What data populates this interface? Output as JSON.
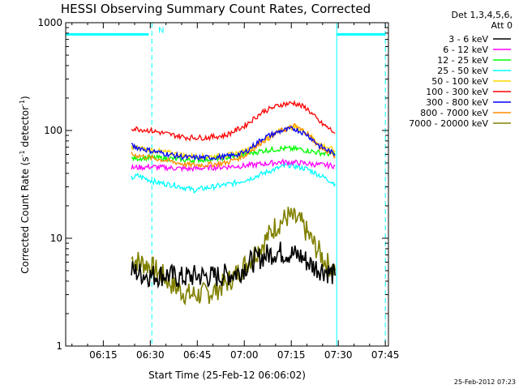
{
  "chart_data": {
    "type": "line",
    "title": "HESSI Observing Summary Count Rates, Corrected",
    "xlabel": "Start Time (25-Feb-12 06:06:02)",
    "ylabel_main": "Corrected Count Rate (s",
    "ylabel_sup1": "-1",
    "ylabel_mid": " detector",
    "ylabel_sup2": "-1",
    "ylabel_end": ")",
    "y_scale": "log",
    "ylim": [
      1,
      1000
    ],
    "xlim_min": [
      363,
      466
    ],
    "x_ticks": [
      "06:15",
      "06:30",
      "06:45",
      "07:00",
      "07:15",
      "07:30",
      "07:45"
    ],
    "x_tick_minutes": [
      375,
      390,
      405,
      420,
      435,
      450,
      465
    ],
    "y_ticks": [
      "1",
      "10",
      "100",
      "1000"
    ],
    "y_tick_values": [
      1,
      10,
      100,
      1000
    ],
    "legend_header": [
      "Det 1,3,4,5,6,",
      "Att 0"
    ],
    "legend_position": "right",
    "series": [
      {
        "name": "3 - 6 keV",
        "color": "#000000",
        "x": [
          384,
          386,
          390,
          395,
          400,
          405,
          410,
          415,
          418,
          422,
          426,
          430,
          434,
          438,
          442,
          446,
          449
        ],
        "y": [
          5,
          4.8,
          4.5,
          4.6,
          4.3,
          4.5,
          4.4,
          4.6,
          4.8,
          6,
          6.8,
          7.5,
          7.3,
          6.8,
          5.5,
          5,
          4.5
        ]
      },
      {
        "name": "6 - 12 keV",
        "color": "#ff00ff",
        "x": [
          384,
          390,
          396,
          402,
          408,
          414,
          420,
          426,
          432,
          438,
          444,
          449
        ],
        "y": [
          45,
          46,
          45,
          44,
          45,
          46,
          47,
          49,
          51,
          50,
          48,
          47
        ]
      },
      {
        "name": "12 - 25 keV",
        "color": "#00ff00",
        "x": [
          384,
          390,
          396,
          402,
          408,
          414,
          420,
          426,
          432,
          438,
          444,
          449
        ],
        "y": [
          55,
          56,
          55,
          53,
          54,
          56,
          60,
          65,
          68,
          67,
          62,
          60
        ]
      },
      {
        "name": "25 - 50 keV",
        "color": "#00ffff",
        "x": [
          384,
          386,
          392,
          398,
          404,
          410,
          416,
          422,
          428,
          434,
          440,
          446,
          449
        ],
        "y": [
          36,
          38,
          33,
          31,
          28,
          30,
          32,
          36,
          42,
          48,
          44,
          36,
          32
        ]
      },
      {
        "name": "50 - 100 keV",
        "color": "#ffd700",
        "x": [
          384,
          390,
          396,
          402,
          408,
          414,
          420,
          426,
          432,
          436,
          440,
          444,
          449
        ],
        "y": [
          70,
          66,
          62,
          58,
          57,
          58,
          64,
          80,
          102,
          108,
          95,
          75,
          65
        ]
      },
      {
        "name": "100 - 300 keV",
        "color": "#ff0000",
        "x": [
          384,
          390,
          396,
          402,
          408,
          414,
          420,
          426,
          432,
          436,
          440,
          444,
          449
        ],
        "y": [
          105,
          100,
          92,
          86,
          86,
          90,
          110,
          150,
          175,
          180,
          160,
          120,
          95
        ]
      },
      {
        "name": "300 - 800 keV",
        "color": "#0000ff",
        "x": [
          384,
          390,
          396,
          402,
          408,
          414,
          420,
          426,
          432,
          436,
          440,
          444,
          449
        ],
        "y": [
          72,
          65,
          60,
          56,
          56,
          57,
          62,
          85,
          100,
          104,
          92,
          72,
          60
        ]
      },
      {
        "name": "800 - 7000 keV",
        "color": "#ff8c00",
        "x": [
          384,
          390,
          396,
          402,
          408,
          414,
          420,
          426,
          432,
          436,
          440,
          444,
          449
        ],
        "y": [
          60,
          56,
          52,
          48,
          48,
          50,
          58,
          80,
          100,
          110,
          95,
          70,
          58
        ]
      },
      {
        "name": "7000 - 20000 keV",
        "color": "#808000",
        "x": [
          384,
          387,
          390,
          394,
          398,
          402,
          406,
          410,
          414,
          418,
          422,
          426,
          430,
          434,
          438,
          442,
          446,
          449
        ],
        "y": [
          6.5,
          6,
          5.5,
          4.5,
          3.5,
          3,
          3,
          3.2,
          3.8,
          4.8,
          6.5,
          9,
          13,
          16,
          14,
          9,
          6,
          5
        ]
      }
    ],
    "attenuator_color": "#00ffff",
    "attenuator_level": 780,
    "solid_markers_min": [
      363,
      449.5
    ],
    "dashed_markers_min": [
      390.5,
      465
    ],
    "attenuator_segments_min": [
      [
        363,
        389.5
      ],
      [
        449.5,
        465
      ]
    ],
    "annotation": "N",
    "annotation_x_min": 392.5
  },
  "timestamp": "25-Feb-2012 07:23"
}
